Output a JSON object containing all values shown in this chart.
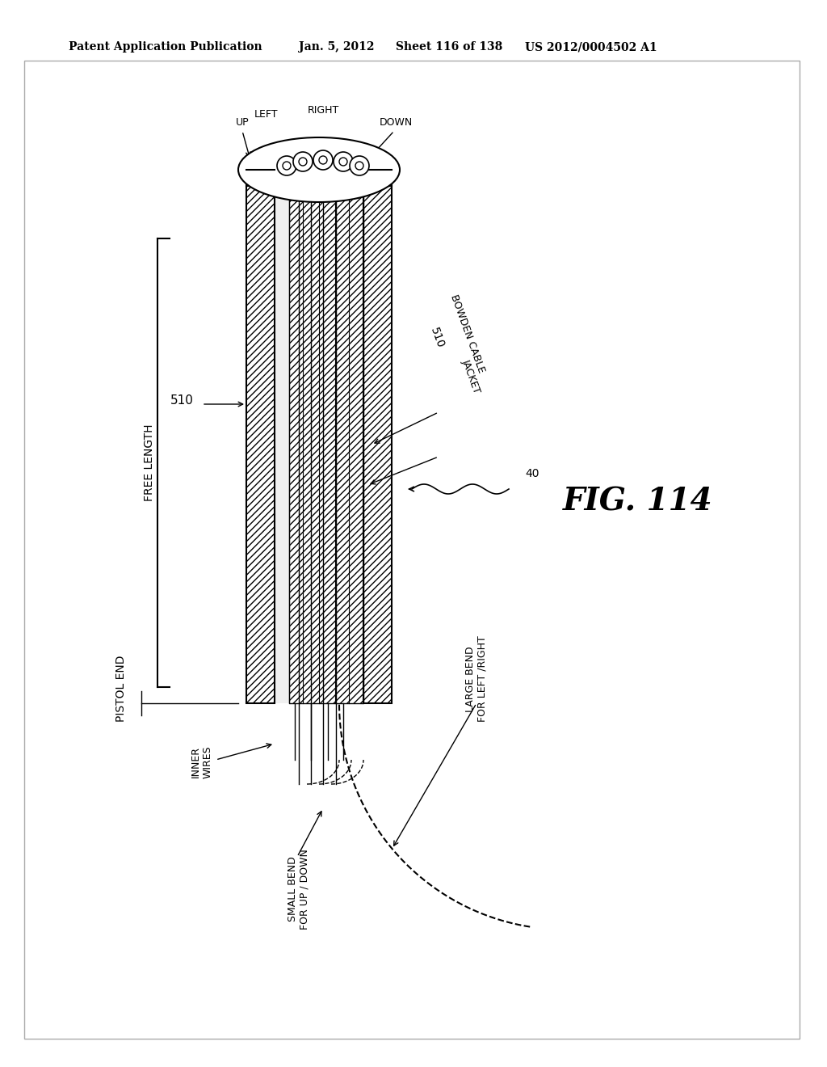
{
  "bg_color": "#ffffff",
  "header_text": "Patent Application Publication",
  "header_date": "Jan. 5, 2012",
  "header_sheet": "Sheet 116 of 138",
  "header_patent": "US 2012/0004502 A1",
  "fig_label": "FIG. 114",
  "label_510_left": "510",
  "label_510_right": "510",
  "label_bowden": "BOWDEN CABLE",
  "label_jacket": "JACKET",
  "label_free_length": "FREE LENGTH",
  "label_pistol_end": "PISTOL END",
  "label_inner_wires": "INNER\nWIRES",
  "label_small_bend": "SMALL BEND\nFOR UP / DOWN",
  "label_large_bend": "LARGE BEND\nFOR LEFT /RIGHT",
  "label_40": "40",
  "label_up": "UP",
  "label_down": "DOWN",
  "label_left": "LEFT",
  "label_right": "RIGHT"
}
